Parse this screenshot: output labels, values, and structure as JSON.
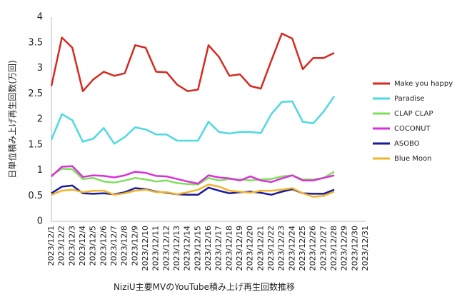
{
  "chart_data": {
    "type": "line",
    "title": "NiziU主要MVのYouTube積み上げ再生回数推移",
    "y_label": "日単位積み上げ再生回数(万回)",
    "categories": [
      "2023/12/1",
      "2023/12/2",
      "2023/12/3",
      "2023/12/4",
      "2023/12/5",
      "2023/12/6",
      "2023/12/7",
      "2023/12/8",
      "2023/12/9",
      "2023/12/10",
      "2023/12/11",
      "2023/12/12",
      "2023/12/13",
      "2023/12/14",
      "2023/12/15",
      "2023/12/16",
      "2023/12/17",
      "2023/12/18",
      "2023/12/19",
      "2023/12/20",
      "2023/12/21",
      "2023/12/22",
      "2023/12/23",
      "2023/12/24",
      "2023/12/25",
      "2023/12/26",
      "2023/12/27",
      "2023/12/28",
      "2023/12/29",
      "2023/12/30",
      "2023/12/31"
    ],
    "series": [
      {
        "name": "Make you happy",
        "color": "#d42a1f",
        "values": [
          2.65,
          3.6,
          3.4,
          2.55,
          2.78,
          2.93,
          2.85,
          2.9,
          3.45,
          3.4,
          2.93,
          2.92,
          2.68,
          2.55,
          2.58,
          3.45,
          3.22,
          2.85,
          2.88,
          2.65,
          2.6,
          3.15,
          3.68,
          3.58,
          2.98,
          3.2,
          3.2,
          3.3,
          null,
          null,
          null
        ]
      },
      {
        "name": "Paradise",
        "color": "#4dd9e0",
        "values": [
          1.6,
          2.1,
          1.98,
          1.56,
          1.62,
          1.83,
          1.52,
          1.65,
          1.84,
          1.8,
          1.7,
          1.7,
          1.58,
          1.58,
          1.58,
          1.95,
          1.75,
          1.72,
          1.75,
          1.75,
          1.73,
          2.1,
          2.34,
          2.35,
          1.95,
          1.92,
          2.15,
          2.45,
          null,
          null,
          null
        ]
      },
      {
        "name": "CLAP CLAP",
        "color": "#7ee05a",
        "values": [
          0.9,
          1.03,
          1.02,
          0.83,
          0.85,
          0.78,
          0.76,
          0.8,
          0.85,
          0.82,
          0.78,
          0.8,
          0.75,
          0.73,
          0.72,
          0.85,
          0.8,
          0.83,
          0.82,
          0.8,
          0.82,
          0.83,
          0.88,
          0.9,
          0.82,
          0.82,
          0.85,
          0.97,
          null,
          null,
          null
        ]
      },
      {
        "name": "COCONUT",
        "color": "#d930d9",
        "values": [
          0.88,
          1.07,
          1.08,
          0.87,
          0.9,
          0.89,
          0.86,
          0.9,
          0.97,
          0.95,
          0.89,
          0.88,
          0.83,
          0.78,
          0.74,
          0.9,
          0.86,
          0.84,
          0.8,
          0.88,
          0.8,
          0.77,
          0.84,
          0.9,
          0.8,
          0.8,
          0.85,
          0.9,
          null,
          null,
          null
        ]
      },
      {
        "name": "ASOBO",
        "color": "#1a1a9c",
        "values": [
          0.55,
          0.68,
          0.7,
          0.55,
          0.54,
          0.55,
          0.53,
          0.57,
          0.65,
          0.63,
          0.58,
          0.56,
          0.53,
          0.52,
          0.52,
          0.66,
          0.6,
          0.55,
          0.57,
          0.58,
          0.56,
          0.52,
          0.58,
          0.63,
          0.55,
          0.54,
          0.54,
          0.62,
          null,
          null,
          null
        ]
      },
      {
        "name": "Blue Moon",
        "color": "#f0b429",
        "values": [
          0.52,
          0.6,
          0.62,
          0.57,
          0.6,
          0.6,
          0.52,
          0.55,
          0.6,
          0.62,
          0.57,
          0.57,
          0.53,
          0.57,
          0.62,
          0.72,
          0.68,
          0.6,
          0.58,
          0.56,
          0.6,
          0.6,
          0.62,
          0.65,
          0.55,
          0.48,
          0.5,
          0.58,
          null,
          null,
          null
        ]
      }
    ],
    "ylim": [
      0,
      4
    ],
    "yticks": [
      0,
      0.5,
      1,
      1.5,
      2,
      2.5,
      3,
      3.5,
      4
    ],
    "grid": false,
    "legend": "right"
  }
}
